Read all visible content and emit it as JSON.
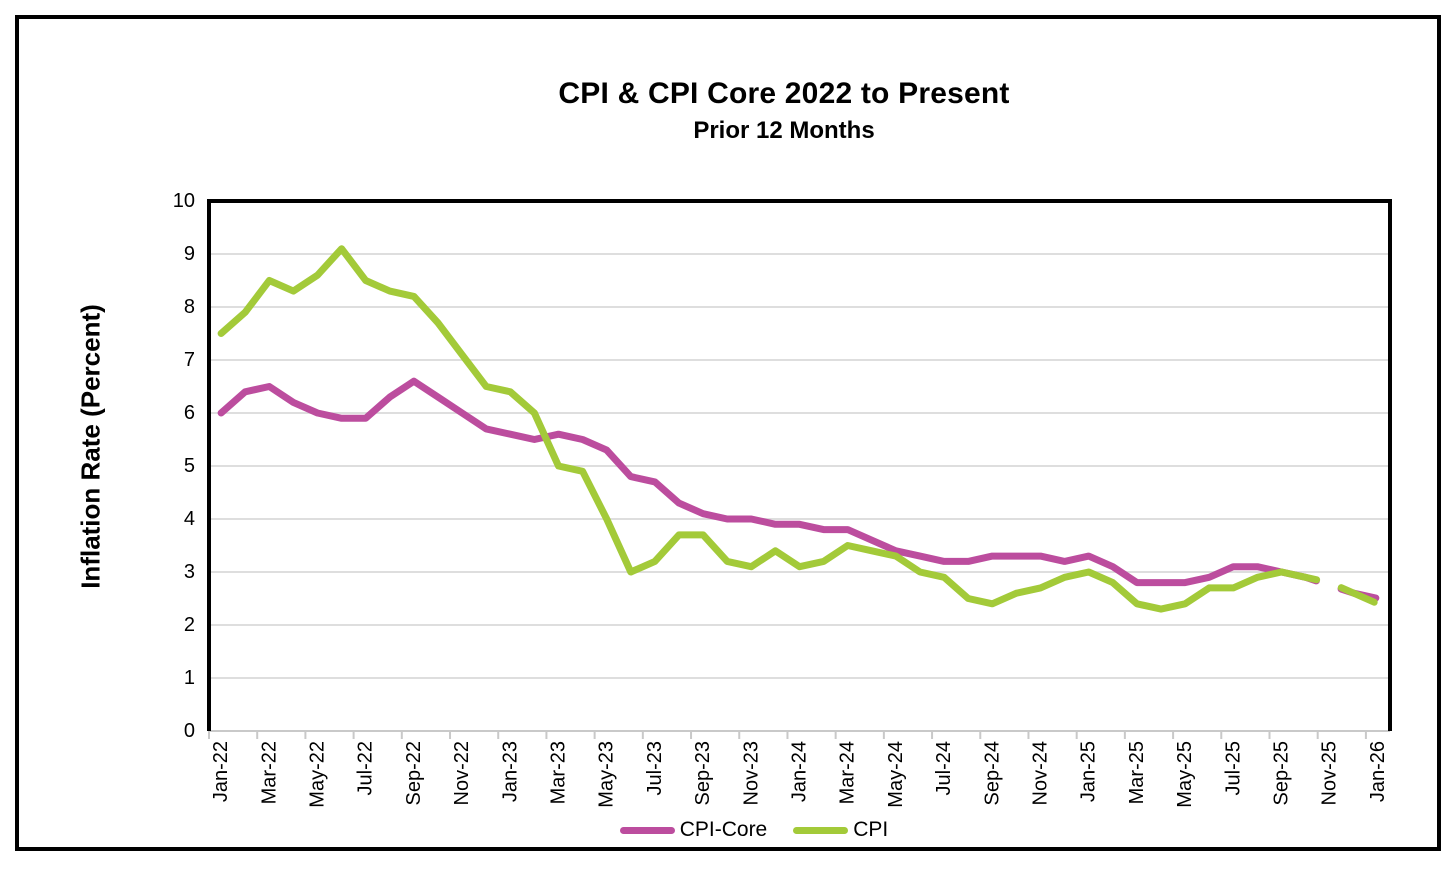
{
  "title": "CPI & CPI Core  2022 to Present",
  "subtitle": "Prior 12 Months",
  "chart_data": {
    "type": "line",
    "title": "CPI & CPI Core  2022 to Present",
    "subtitle": "Prior 12 Months",
    "ylabel": "Inflation Rate (Percent)",
    "xlabel": "",
    "ylim": [
      0,
      10
    ],
    "y_ticks": [
      0,
      1,
      2,
      3,
      4,
      5,
      6,
      7,
      8,
      9,
      10
    ],
    "grid": true,
    "legend_position": "bottom",
    "x_tick_label_every": 2,
    "dashed_from_index": 44,
    "x": [
      "Jan-22",
      "Feb-22",
      "Mar-22",
      "Apr-22",
      "May-22",
      "Jun-22",
      "Jul-22",
      "Aug-22",
      "Sep-22",
      "Oct-22",
      "Nov-22",
      "Dec-22",
      "Jan-23",
      "Feb-23",
      "Mar-23",
      "Apr-23",
      "May-23",
      "Jun-23",
      "Jul-23",
      "Aug-23",
      "Sep-23",
      "Oct-23",
      "Nov-23",
      "Dec-23",
      "Jan-24",
      "Feb-24",
      "Mar-24",
      "Apr-24",
      "May-24",
      "Jun-24",
      "Jul-24",
      "Aug-24",
      "Sep-24",
      "Oct-24",
      "Nov-24",
      "Dec-24",
      "Jan-25",
      "Feb-25",
      "Mar-25",
      "Apr-25",
      "May-25",
      "Jun-25",
      "Jul-25",
      "Aug-25",
      "Sep-25",
      "Oct-25",
      "Nov-25",
      "Dec-25",
      "Jan-26"
    ],
    "series": [
      {
        "name": "CPI-Core",
        "color": "#bc4d9e",
        "values": [
          6.0,
          6.4,
          6.5,
          6.2,
          6.0,
          5.9,
          5.9,
          6.3,
          6.6,
          6.3,
          6.0,
          5.7,
          5.6,
          5.5,
          5.6,
          5.5,
          5.3,
          4.8,
          4.7,
          4.3,
          4.1,
          4.0,
          4.0,
          3.9,
          3.9,
          3.8,
          3.8,
          3.6,
          3.4,
          3.3,
          3.2,
          3.2,
          3.3,
          3.3,
          3.3,
          3.2,
          3.3,
          3.1,
          2.8,
          2.8,
          2.8,
          2.9,
          3.1,
          3.1,
          3.0,
          2.9,
          2.75,
          2.6,
          2.5
        ]
      },
      {
        "name": "CPI",
        "color": "#a3ca39",
        "values": [
          7.5,
          7.9,
          8.5,
          8.3,
          8.6,
          9.1,
          8.5,
          8.3,
          8.2,
          7.7,
          7.1,
          6.5,
          6.4,
          6.0,
          5.0,
          4.9,
          4.0,
          3.0,
          3.2,
          3.7,
          3.7,
          3.2,
          3.1,
          3.4,
          3.1,
          3.2,
          3.5,
          3.4,
          3.3,
          3.0,
          2.9,
          2.5,
          2.4,
          2.6,
          2.7,
          2.9,
          3.0,
          2.8,
          2.4,
          2.3,
          2.4,
          2.7,
          2.7,
          2.9,
          3.0,
          2.9,
          2.8,
          2.6,
          2.4
        ]
      }
    ]
  },
  "colors": {
    "cpi_core": "#bc4d9e",
    "cpi": "#a3ca39",
    "gridline": "#d9d9d9",
    "bottom_axis": "#c9c9c9",
    "plot_border": "#000000"
  }
}
